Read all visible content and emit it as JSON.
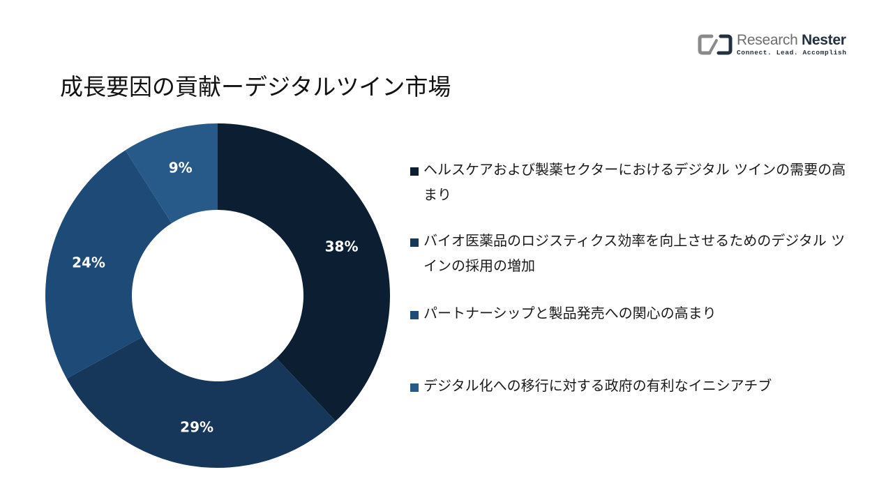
{
  "header": {
    "title": "成長要因の貢献ーデジタルツイン市場"
  },
  "logo": {
    "name_part1": "Research",
    "name_part2": "Nester",
    "tagline": "Connect. Lead. Accomplish",
    "colors": {
      "gray": "#8a8a8a",
      "navy": "#23303f"
    }
  },
  "chart_data": {
    "type": "pie",
    "donut": true,
    "title": "",
    "categories": [
      "ヘルスケアおよび製薬セクターにおけるデジタル ツインの需要の高まり",
      "バイオ医薬品のロジスティクス効率を向上させるためのデジタル ツインの採用の増加",
      "パートナーシップと製品発売への関心の高まり",
      "デジタル化への移行に対する政府の有利なイニシアチブ"
    ],
    "values": [
      38,
      29,
      24,
      9
    ],
    "data_labels": [
      "38%",
      "29%",
      "24%",
      "9%"
    ],
    "colors": [
      "#0c1e31",
      "#16365a",
      "#1d4a77",
      "#275a89"
    ],
    "legend_colors": [
      "#0c1e31",
      "#16365a",
      "#1d4a77",
      "#275a89"
    ],
    "label_color": "#ffffff",
    "start": "12 o'clock, clockwise",
    "legend_position": "right"
  }
}
